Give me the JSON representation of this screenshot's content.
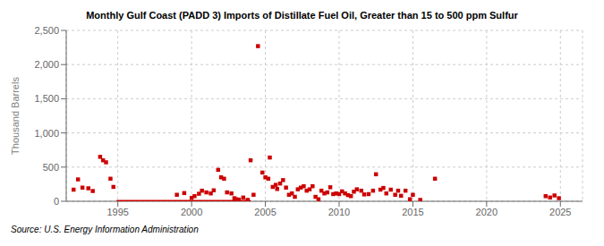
{
  "chart_data": {
    "type": "scatter",
    "title": "Monthly Gulf Coast (PADD 3) Imports of Distillate Fuel Oil, Greater than 15 to 500 ppm Sulfur",
    "y_label": "Thousand Barrels",
    "annotation": "Source: U.S. Energy Information Administration",
    "xlim": [
      1991.5,
      2026.5
    ],
    "xticks": [
      1995,
      2000,
      2005,
      2010,
      2015,
      2020,
      2025
    ],
    "ylim": [
      0,
      2500
    ],
    "yticks": [
      0,
      500,
      {
        "value": 1000,
        "label": "1,000"
      },
      {
        "value": 1500,
        "label": "1,500"
      },
      {
        "value": 2000,
        "label": "2,000"
      },
      {
        "value": 2500,
        "label": "2,500"
      }
    ],
    "grid": true,
    "series": [
      {
        "type": "scatter",
        "marker": "square",
        "color": "#cc0000",
        "x": [
          1992.0,
          1992.3,
          1992.6,
          1993.0,
          1993.3,
          1993.8,
          1994.0,
          1994.2,
          1994.5,
          1994.7,
          1999.0,
          1999.5,
          2000.0,
          2000.2,
          2000.5,
          2000.7,
          2001.0,
          2001.3,
          2001.5,
          2001.8,
          2002.0,
          2002.2,
          2002.4,
          2002.7,
          2002.9,
          2003.0,
          2003.2,
          2003.5,
          2003.8,
          2004.0,
          2004.2,
          2004.5,
          2004.8,
          2005.0,
          2005.2,
          2005.3,
          2005.5,
          2005.7,
          2005.8,
          2006.0,
          2006.2,
          2006.4,
          2006.6,
          2006.8,
          2007.0,
          2007.2,
          2007.4,
          2007.6,
          2007.8,
          2008.0,
          2008.2,
          2008.4,
          2008.6,
          2008.8,
          2009.0,
          2009.2,
          2009.4,
          2009.6,
          2009.8,
          2010.0,
          2010.2,
          2010.4,
          2010.6,
          2010.8,
          2011.0,
          2011.2,
          2011.5,
          2011.7,
          2012.0,
          2012.3,
          2012.5,
          2012.8,
          2013.0,
          2013.2,
          2013.5,
          2013.8,
          2014.0,
          2014.2,
          2014.5,
          2014.8,
          2015.0,
          2015.5,
          2016.5,
          2024.0,
          2024.3,
          2024.6,
          2024.9
        ],
        "values": [
          170,
          320,
          200,
          190,
          150,
          650,
          600,
          570,
          330,
          210,
          95,
          120,
          50,
          75,
          110,
          155,
          130,
          115,
          160,
          460,
          350,
          330,
          130,
          115,
          45,
          30,
          25,
          55,
          20,
          600,
          95,
          2270,
          420,
          350,
          330,
          640,
          210,
          240,
          180,
          260,
          310,
          200,
          95,
          115,
          65,
          175,
          200,
          220,
          155,
          175,
          220,
          65,
          30,
          155,
          115,
          130,
          205,
          105,
          115,
          105,
          145,
          115,
          90,
          75,
          140,
          175,
          155,
          100,
          105,
          155,
          395,
          170,
          195,
          115,
          170,
          95,
          155,
          80,
          155,
          30,
          95,
          20,
          330,
          75,
          55,
          85,
          45
        ]
      },
      {
        "type": "line",
        "color": "#cc0000",
        "x": [
          1994.92,
          2004.0
        ],
        "values": [
          0,
          0
        ]
      }
    ]
  }
}
